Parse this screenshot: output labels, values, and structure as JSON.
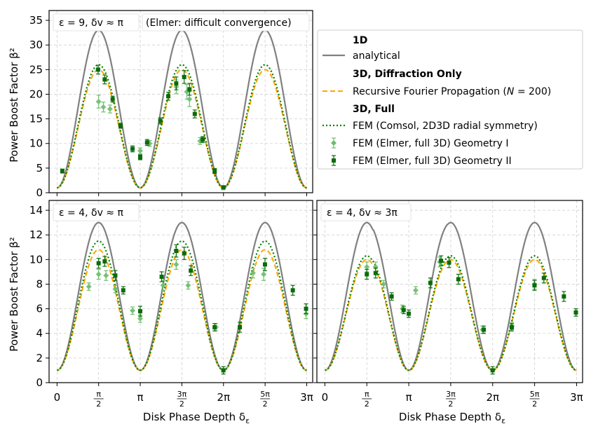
{
  "figure": {
    "ylabel": "Power Boost Factor β²",
    "xlabel": "Disk Phase Depth δ",
    "xlabel_sub": "ε",
    "xticks": [
      "0",
      "π/2",
      "π",
      "3π/2",
      "2π",
      "5π/2",
      "3π"
    ]
  },
  "legend": {
    "groups": [
      {
        "header": "1D",
        "items": [
          {
            "label": "analytical",
            "style": "gray-solid"
          }
        ]
      },
      {
        "header": "3D,  Diffraction Only",
        "items": [
          {
            "label": "Recursive Fourier Propagation (N = 200)",
            "style": "orange-dashed"
          }
        ]
      },
      {
        "header": "3D,  Full",
        "items": [
          {
            "label": "FEM (Comsol, 2D3D radial symmetry)",
            "style": "green-dotted"
          },
          {
            "label": "FEM (Elmer, full 3D) Geometry I",
            "style": "light-green-errorbar"
          },
          {
            "label": "FEM (Elmer, full 3D) Geometry II",
            "style": "dark-green-errorbar"
          }
        ]
      }
    ]
  },
  "colors": {
    "analytical": "#808080",
    "rfp": "#FFA500",
    "comsol": "#008000",
    "geomI": "#6DBE6D",
    "geomII": "#0B6B0B"
  },
  "chart_data": [
    {
      "id": "top-left",
      "type": "line",
      "title": "ε = 9, δv ≈ π",
      "annotation": "(Elmer: difficult convergence)",
      "ylabel": "Power Boost Factor β²",
      "xlabel": "",
      "xlim": [
        -0.3,
        9.65
      ],
      "ylim": [
        0,
        37
      ],
      "yticks": [
        0,
        5,
        10,
        15,
        20,
        25,
        30,
        35
      ],
      "series": [
        {
          "name": "analytical",
          "amp": 32,
          "phase": 0,
          "thetaA": 0.0,
          "x_range": [
            0,
            9.425
          ]
        },
        {
          "name": "RFP",
          "amp": 24,
          "phase": 0,
          "thetaA": 0.1,
          "x_range": [
            0,
            9.425
          ]
        },
        {
          "name": "Comsol",
          "amp": 25,
          "phase": 0,
          "thetaA": 0.05,
          "x_range": [
            0,
            9.425
          ]
        }
      ],
      "geomI": [
        [
          1.57,
          18.5,
          1.3
        ],
        [
          1.75,
          17.4,
          1.0
        ],
        [
          2.0,
          17.0,
          0.8
        ],
        [
          3.14,
          8.5,
          0.6
        ],
        [
          3.5,
          10.0,
          0.6
        ],
        [
          4.5,
          21.5,
          1.4
        ],
        [
          4.9,
          20.5,
          1.5
        ],
        [
          5.0,
          19.0,
          1.5
        ],
        [
          5.4,
          10.5,
          0.7
        ],
        [
          6.28,
          1.0,
          0.4
        ]
      ],
      "geomII": [
        [
          0.2,
          4.4,
          0.4
        ],
        [
          1.55,
          25.0,
          0.9
        ],
        [
          1.8,
          23.0,
          0.9
        ],
        [
          2.1,
          19.0,
          0.6
        ],
        [
          2.4,
          13.6,
          0.5
        ],
        [
          2.85,
          8.9,
          0.6
        ],
        [
          3.14,
          7.2,
          0.5
        ],
        [
          3.4,
          10.2,
          0.6
        ],
        [
          3.9,
          14.6,
          0.6
        ],
        [
          4.2,
          19.6,
          0.8
        ],
        [
          4.5,
          22.2,
          1.3
        ],
        [
          4.8,
          23.5,
          1.3
        ],
        [
          5.0,
          21.0,
          1.2
        ],
        [
          5.2,
          16.0,
          0.8
        ],
        [
          5.5,
          10.8,
          0.6
        ],
        [
          5.95,
          4.4,
          0.5
        ],
        [
          6.28,
          1.1,
          0.3
        ]
      ]
    },
    {
      "id": "bottom-left",
      "type": "line",
      "title": "ε = 4, δv ≈ π",
      "annotation": "",
      "ylabel": "Power Boost Factor β²",
      "xlabel": "Disk Phase Depth δε",
      "xlim": [
        -0.3,
        9.65
      ],
      "ylim": [
        0,
        14.8
      ],
      "yticks": [
        0,
        2,
        4,
        6,
        8,
        10,
        12,
        14
      ],
      "series": [
        {
          "name": "analytical",
          "amp": 12,
          "phase": 0,
          "thetaA": 0.0,
          "x_range": [
            0,
            9.425
          ]
        },
        {
          "name": "RFP",
          "amp": 9.8,
          "phase": 0,
          "thetaA": 0.12,
          "x_range": [
            0,
            9.425
          ]
        },
        {
          "name": "Comsol",
          "amp": 10.5,
          "phase": 0,
          "thetaA": 0.07,
          "x_range": [
            0,
            9.425
          ]
        }
      ],
      "geomI": [
        [
          1.2,
          7.8,
          0.3
        ],
        [
          1.57,
          8.8,
          0.4
        ],
        [
          1.85,
          8.7,
          0.4
        ],
        [
          2.2,
          7.6,
          0.3
        ],
        [
          2.85,
          5.85,
          0.3
        ],
        [
          3.14,
          5.2,
          0.3
        ],
        [
          4.0,
          7.9,
          0.4
        ],
        [
          4.5,
          9.6,
          0.4
        ],
        [
          4.95,
          7.9,
          0.3
        ],
        [
          6.0,
          4.5,
          0.3
        ],
        [
          7.4,
          8.9,
          0.4
        ],
        [
          7.8,
          8.8,
          0.5
        ],
        [
          9.4,
          5.6,
          0.4
        ]
      ],
      "geomII": [
        [
          1.57,
          9.7,
          0.4
        ],
        [
          1.8,
          9.85,
          0.4
        ],
        [
          2.2,
          8.7,
          0.4
        ],
        [
          2.5,
          7.5,
          0.3
        ],
        [
          3.14,
          5.8,
          0.4
        ],
        [
          3.95,
          8.6,
          0.4
        ],
        [
          4.5,
          10.7,
          0.5
        ],
        [
          4.8,
          10.5,
          0.5
        ],
        [
          5.05,
          9.1,
          0.4
        ],
        [
          5.95,
          4.5,
          0.3
        ],
        [
          6.28,
          1.0,
          0.3
        ],
        [
          6.9,
          4.5,
          0.4
        ],
        [
          7.85,
          9.6,
          0.5
        ],
        [
          8.9,
          7.5,
          0.4
        ],
        [
          9.4,
          6.0,
          0.4
        ]
      ]
    },
    {
      "id": "bottom-right",
      "type": "line",
      "title": "ε = 4, δv ≈ 3π",
      "annotation": "",
      "ylabel": "",
      "xlabel": "Disk Phase Depth δε",
      "xlim": [
        -0.3,
        9.65
      ],
      "ylim": [
        0,
        14.8
      ],
      "yticks": [
        0,
        2,
        4,
        6,
        8,
        10,
        12,
        14
      ],
      "series": [
        {
          "name": "analytical",
          "amp": 12,
          "phase": 0.5,
          "thetaA": 0.0,
          "x_range": [
            0,
            9.425
          ]
        },
        {
          "name": "RFP",
          "amp": 9.0,
          "phase": 0.5,
          "thetaA": 0.08,
          "x_range": [
            0,
            9.425
          ]
        },
        {
          "name": "Comsol",
          "amp": 9.3,
          "phase": 0.5,
          "thetaA": 0.05,
          "x_range": [
            0,
            9.425
          ]
        }
      ],
      "geomI": [
        [
          1.57,
          9.4,
          0.4
        ],
        [
          1.9,
          9.4,
          0.4
        ],
        [
          2.2,
          8.0,
          0.3
        ],
        [
          2.9,
          6.0,
          0.3
        ],
        [
          3.4,
          7.5,
          0.3
        ],
        [
          4.3,
          9.8,
          0.4
        ],
        [
          5.9,
          4.3,
          0.3
        ],
        [
          7.0,
          4.6,
          0.3
        ],
        [
          7.85,
          8.0,
          0.4
        ]
      ],
      "geomII": [
        [
          1.57,
          8.8,
          0.4
        ],
        [
          1.9,
          8.9,
          0.4
        ],
        [
          2.5,
          7.0,
          0.3
        ],
        [
          2.95,
          5.9,
          0.3
        ],
        [
          3.14,
          5.6,
          0.3
        ],
        [
          3.95,
          8.1,
          0.4
        ],
        [
          4.35,
          9.9,
          0.4
        ],
        [
          4.65,
          9.75,
          0.4
        ],
        [
          5.0,
          8.4,
          0.4
        ],
        [
          5.95,
          4.3,
          0.3
        ],
        [
          6.28,
          1.0,
          0.3
        ],
        [
          7.0,
          4.5,
          0.3
        ],
        [
          7.85,
          7.9,
          0.4
        ],
        [
          8.2,
          8.5,
          0.4
        ],
        [
          8.95,
          7.0,
          0.4
        ],
        [
          9.4,
          5.7,
          0.3
        ]
      ]
    }
  ]
}
